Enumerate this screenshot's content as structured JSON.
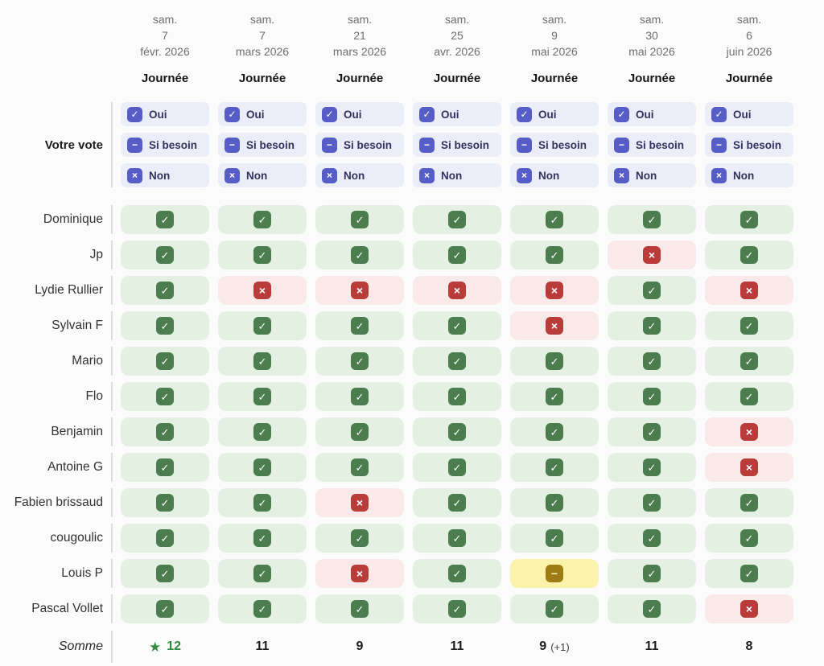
{
  "columns": [
    {
      "weekday": "sam.",
      "day": "7",
      "monthYear": "févr. 2026",
      "slot": "Journée"
    },
    {
      "weekday": "sam.",
      "day": "7",
      "monthYear": "mars 2026",
      "slot": "Journée"
    },
    {
      "weekday": "sam.",
      "day": "21",
      "monthYear": "mars 2026",
      "slot": "Journée"
    },
    {
      "weekday": "sam.",
      "day": "25",
      "monthYear": "avr. 2026",
      "slot": "Journée"
    },
    {
      "weekday": "sam.",
      "day": "9",
      "monthYear": "mai 2026",
      "slot": "Journée"
    },
    {
      "weekday": "sam.",
      "day": "30",
      "monthYear": "mai 2026",
      "slot": "Journée"
    },
    {
      "weekday": "sam.",
      "day": "6",
      "monthYear": "juin 2026",
      "slot": "Journée"
    }
  ],
  "vote": {
    "label": "Votre vote",
    "options": [
      {
        "value": "yes",
        "label": "Oui",
        "icon": "check"
      },
      {
        "value": "ifneedbe",
        "label": "Si besoin",
        "icon": "dash"
      },
      {
        "value": "no",
        "label": "Non",
        "icon": "x"
      }
    ]
  },
  "participants": [
    {
      "name": "Dominique",
      "votes": [
        "yes",
        "yes",
        "yes",
        "yes",
        "yes",
        "yes",
        "yes"
      ]
    },
    {
      "name": "Jp",
      "votes": [
        "yes",
        "yes",
        "yes",
        "yes",
        "yes",
        "no",
        "yes"
      ]
    },
    {
      "name": "Lydie Rullier",
      "votes": [
        "yes",
        "no",
        "no",
        "no",
        "no",
        "yes",
        "no"
      ]
    },
    {
      "name": "Sylvain F",
      "votes": [
        "yes",
        "yes",
        "yes",
        "yes",
        "no",
        "yes",
        "yes"
      ]
    },
    {
      "name": "Mario",
      "votes": [
        "yes",
        "yes",
        "yes",
        "yes",
        "yes",
        "yes",
        "yes"
      ]
    },
    {
      "name": "Flo",
      "votes": [
        "yes",
        "yes",
        "yes",
        "yes",
        "yes",
        "yes",
        "yes"
      ]
    },
    {
      "name": "Benjamin",
      "votes": [
        "yes",
        "yes",
        "yes",
        "yes",
        "yes",
        "yes",
        "no"
      ]
    },
    {
      "name": "Antoine G",
      "votes": [
        "yes",
        "yes",
        "yes",
        "yes",
        "yes",
        "yes",
        "no"
      ]
    },
    {
      "name": "Fabien brissaud",
      "votes": [
        "yes",
        "yes",
        "no",
        "yes",
        "yes",
        "yes",
        "yes"
      ]
    },
    {
      "name": "cougoulic",
      "votes": [
        "yes",
        "yes",
        "yes",
        "yes",
        "yes",
        "yes",
        "yes"
      ]
    },
    {
      "name": "Louis P",
      "votes": [
        "yes",
        "yes",
        "no",
        "yes",
        "ifneedbe",
        "yes",
        "yes"
      ]
    },
    {
      "name": "Pascal Vollet",
      "votes": [
        "yes",
        "yes",
        "yes",
        "yes",
        "yes",
        "yes",
        "no"
      ]
    }
  ],
  "summary": {
    "label": "Somme",
    "values": [
      {
        "count": "12",
        "best": true,
        "extra": ""
      },
      {
        "count": "11",
        "best": false,
        "extra": ""
      },
      {
        "count": "9",
        "best": false,
        "extra": ""
      },
      {
        "count": "11",
        "best": false,
        "extra": ""
      },
      {
        "count": "9",
        "best": false,
        "extra": "(+1)"
      },
      {
        "count": "11",
        "best": false,
        "extra": ""
      },
      {
        "count": "8",
        "best": false,
        "extra": ""
      }
    ]
  },
  "glyphs": {
    "check": "✓",
    "dash": "−",
    "x": "×",
    "star": "★"
  },
  "colors": {
    "accent_purple": "#575dc6",
    "vote_button_bg": "#ebedf8",
    "vote_text": "#32335e",
    "yes_bg": "#e4f1e2",
    "yes_icon": "#4b7d4f",
    "no_bg": "#f9e9e8",
    "no_icon": "#ba3c3a",
    "ifneedbe_bg": "#fbf2ab",
    "ifneedbe_icon": "#9d7c15",
    "best_green": "#2f8b3c",
    "header_gray": "#6f6f70",
    "divider": "#dcdcdf"
  }
}
